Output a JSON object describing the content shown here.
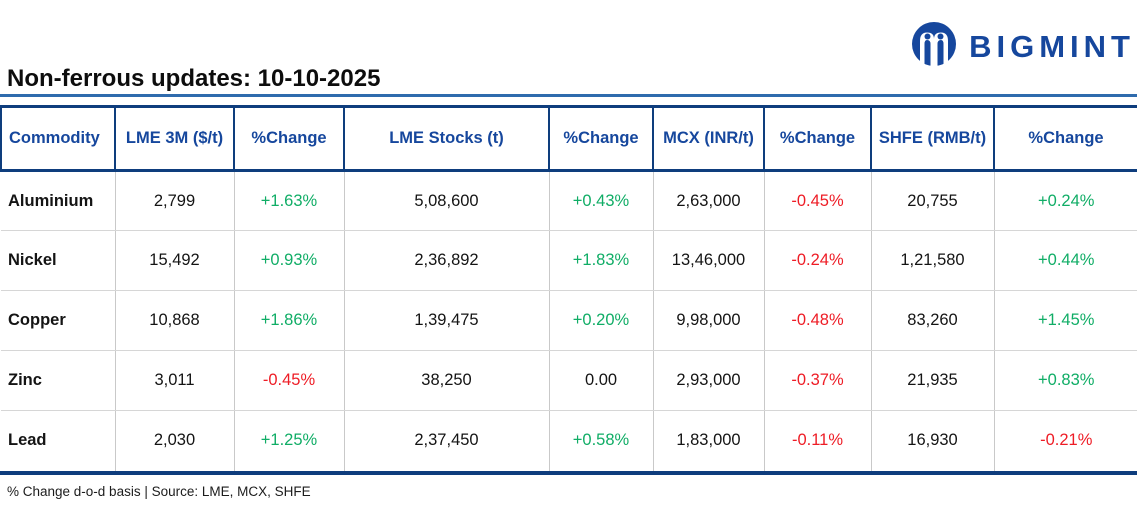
{
  "brand": {
    "wordmark": "BIGMINT",
    "logo_icon": "bigmint-m-icon"
  },
  "colors": {
    "brand_blue": "#16479d",
    "border_navy": "#0e3d7d",
    "underline_blue": "#2f6bad",
    "positive_green": "#10ad66",
    "negative_red": "#ee1c25"
  },
  "chart_data": {
    "type": "table",
    "title": "Non-ferrous updates: 10-10-2025",
    "columns": [
      "Commodity",
      "LME 3M ($/t)",
      "%Change",
      "LME Stocks (t)",
      "%Change",
      "MCX (INR/t)",
      "%Change",
      "SHFE (RMB/t)",
      "%Change"
    ],
    "percent_columns": [
      2,
      4,
      6,
      8
    ],
    "rows": [
      [
        "Aluminium",
        "2,799",
        "+1.63%",
        "5,08,600",
        "+0.43%",
        "2,63,000",
        "-0.45%",
        "20,755",
        "+0.24%"
      ],
      [
        "Nickel",
        "15,492",
        "+0.93%",
        "2,36,892",
        "+1.83%",
        "13,46,000",
        "-0.24%",
        "1,21,580",
        "+0.44%"
      ],
      [
        "Copper",
        "10,868",
        "+1.86%",
        "1,39,475",
        "+0.20%",
        "9,98,000",
        "-0.48%",
        "83,260",
        "+1.45%"
      ],
      [
        "Zinc",
        "3,011",
        "-0.45%",
        "38,250",
        "0.00",
        "2,93,000",
        "-0.37%",
        "21,935",
        "+0.83%"
      ],
      [
        "Lead",
        "2,030",
        "+1.25%",
        "2,37,450",
        "+0.58%",
        "1,83,000",
        "-0.11%",
        "16,930",
        "-0.21%"
      ]
    ]
  },
  "footer": {
    "note": "% Change d-o-d basis | Source: LME, MCX, SHFE"
  }
}
